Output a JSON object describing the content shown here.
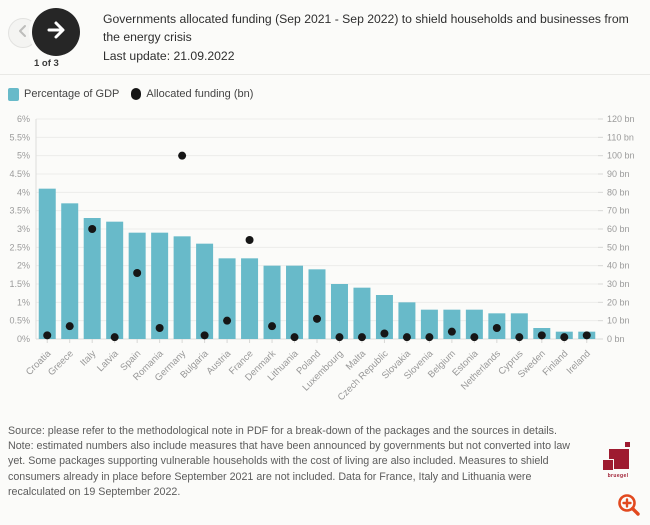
{
  "header": {
    "title": "Governments allocated funding (Sep 2021 - Sep 2022) to shield households and businesses from the energy crisis",
    "last_update": "Last update: 21.09.2022",
    "nav": {
      "current": "1 of 3",
      "prev_icon": "left-arrow-icon",
      "next_icon": "right-arrow-icon"
    }
  },
  "legend": [
    {
      "label": "Percentage of GDP",
      "color": "#68bac9",
      "shape": "square",
      "icon": "gdp-legend-swatch"
    },
    {
      "label": "Allocated funding (bn)",
      "color": "#161616",
      "shape": "circle",
      "icon": "funding-legend-dot"
    }
  ],
  "chart_data": {
    "type": "bar",
    "subtype": "bar-with-scatter-overlay",
    "title": "Governments allocated funding (Sep 2021 - Sep 2022) to shield households and businesses from the energy crisis",
    "grid": true,
    "legend_position": "top-left",
    "categories": [
      "Croatia",
      "Greece",
      "Italy",
      "Latvia",
      "Spain",
      "Romania",
      "Germany",
      "Bulgaria",
      "Austria",
      "France",
      "Denmark",
      "Lithuania",
      "Poland",
      "Luxembourg",
      "Malta",
      "Czech Republic",
      "Slovakia",
      "Slovenia",
      "Belgium",
      "Estonia",
      "Netherlands",
      "Cyprus",
      "Sweden",
      "Finland",
      "Ireland"
    ],
    "series": [
      {
        "name": "Percentage of GDP",
        "type": "bar",
        "axis": "left",
        "unit": "%",
        "values": [
          4.1,
          3.7,
          3.3,
          3.2,
          2.9,
          2.9,
          2.8,
          2.6,
          2.2,
          2.2,
          2.0,
          2.0,
          1.9,
          1.5,
          1.4,
          1.2,
          1.0,
          0.8,
          0.8,
          0.8,
          0.7,
          0.7,
          0.3,
          0.2,
          0.2
        ]
      },
      {
        "name": "Allocated funding (bn)",
        "type": "scatter",
        "axis": "right",
        "unit": "bn",
        "values": [
          2,
          7,
          60,
          1,
          36,
          6,
          100,
          2,
          10,
          54,
          7,
          1,
          11,
          1,
          1,
          3,
          1,
          1,
          4,
          1,
          6,
          1,
          2,
          1,
          2
        ]
      }
    ],
    "left_axis": {
      "min": 0,
      "max": 6,
      "step": 0.5,
      "suffix": "%",
      "ylim": [
        0,
        6
      ]
    },
    "right_axis": {
      "min": 0,
      "max": 120,
      "step": 10,
      "suffix": " bn",
      "ylim": [
        0,
        120
      ]
    }
  },
  "footer": {
    "source": "Source: please refer to the methodological note in PDF for a break-down of the packages and the sources in details.",
    "note": "Note: estimated numbers also include measures that have been announced by governments but not converted into law yet. Some packages supporting vulnerable households with the cost of living are also included. Measures to shield consumers already in place before September 2021 are not included. Data for France, Italy and Lithuania were recalculated on 19 September 2022.",
    "logo_text": "bruegel"
  },
  "colors": {
    "bar": "#68bac9",
    "dot": "#161616",
    "brand_red": "#9e1b30",
    "zoom_icon": "#e2491f",
    "grid": "#ececea",
    "axis_text": "#9b9b9b"
  }
}
